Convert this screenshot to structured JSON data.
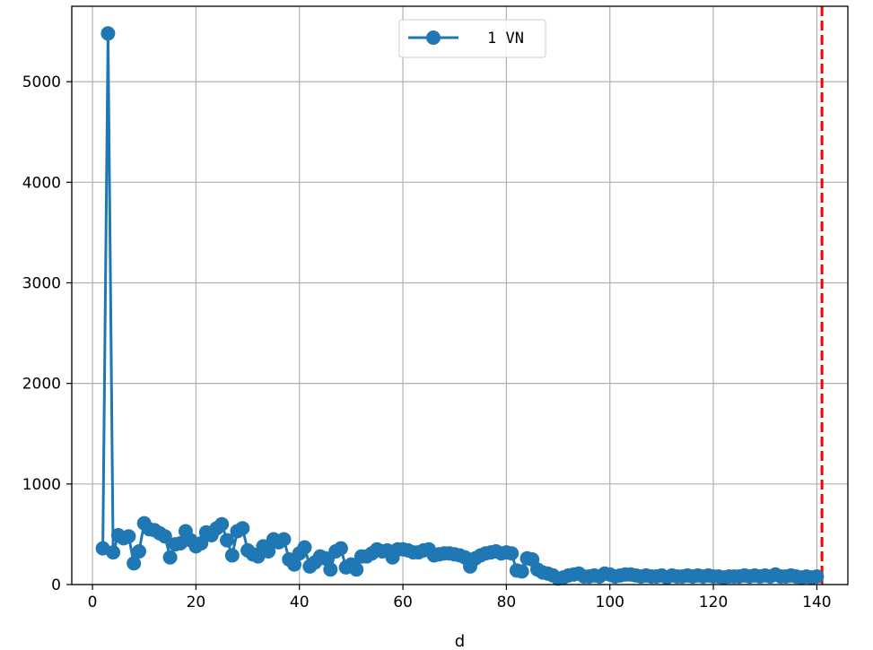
{
  "chart_data": {
    "type": "line",
    "title": "",
    "xlabel": "d",
    "ylabel": "",
    "xlim": [
      -4,
      146
    ],
    "ylim": [
      0,
      5750
    ],
    "xticks": [
      0,
      20,
      40,
      60,
      80,
      100,
      120,
      140
    ],
    "yticks": [
      0,
      1000,
      2000,
      3000,
      4000,
      5000
    ],
    "grid": true,
    "legend_position": "upper center",
    "colors": {
      "series": "#1f77b4",
      "vline": "#ff0000",
      "grid": "#b0b0b0"
    },
    "reference_line": {
      "orientation": "vertical",
      "x": 141,
      "style": "dashed",
      "color": "#ff0000"
    },
    "series": [
      {
        "name": "1 VN",
        "marker": "circle",
        "x": [
          2,
          3,
          4,
          5,
          6,
          7,
          8,
          9,
          10,
          11,
          12,
          13,
          14,
          15,
          16,
          17,
          18,
          19,
          20,
          21,
          22,
          23,
          24,
          25,
          26,
          27,
          28,
          29,
          30,
          31,
          32,
          33,
          34,
          35,
          36,
          37,
          38,
          39,
          40,
          41,
          42,
          43,
          44,
          45,
          46,
          47,
          48,
          49,
          50,
          51,
          52,
          53,
          54,
          55,
          56,
          57,
          58,
          59,
          60,
          61,
          62,
          63,
          64,
          65,
          66,
          67,
          68,
          69,
          70,
          71,
          72,
          73,
          74,
          75,
          76,
          77,
          78,
          79,
          80,
          81,
          82,
          83,
          84,
          85,
          86,
          87,
          88,
          89,
          90,
          91,
          92,
          93,
          94,
          95,
          96,
          97,
          98,
          99,
          100,
          101,
          102,
          103,
          104,
          105,
          106,
          107,
          108,
          109,
          110,
          111,
          112,
          113,
          114,
          115,
          116,
          117,
          118,
          119,
          120,
          121,
          122,
          123,
          124,
          125,
          126,
          127,
          128,
          129,
          130,
          131,
          132,
          133,
          134,
          135,
          136,
          137,
          138,
          139,
          140
        ],
        "values": [
          360,
          5480,
          320,
          490,
          460,
          480,
          210,
          330,
          610,
          550,
          540,
          510,
          480,
          270,
          400,
          410,
          530,
          440,
          380,
          410,
          520,
          490,
          560,
          600,
          440,
          290,
          530,
          560,
          340,
          300,
          280,
          380,
          330,
          450,
          420,
          450,
          250,
          200,
          310,
          370,
          180,
          220,
          280,
          260,
          150,
          330,
          360,
          170,
          200,
          150,
          280,
          280,
          310,
          350,
          330,
          340,
          270,
          350,
          350,
          340,
          320,
          320,
          340,
          350,
          290,
          300,
          310,
          310,
          300,
          290,
          270,
          180,
          260,
          290,
          310,
          320,
          330,
          310,
          320,
          310,
          140,
          130,
          260,
          250,
          150,
          120,
          110,
          90,
          60,
          70,
          90,
          100,
          110,
          80,
          80,
          90,
          80,
          110,
          100,
          80,
          90,
          100,
          100,
          90,
          80,
          90,
          80,
          80,
          90,
          70,
          90,
          80,
          80,
          90,
          80,
          90,
          80,
          90,
          80,
          80,
          70,
          80,
          80,
          80,
          90,
          80,
          90,
          80,
          90,
          80,
          100,
          80,
          80,
          90,
          80,
          70,
          80,
          70,
          80
        ]
      }
    ]
  }
}
